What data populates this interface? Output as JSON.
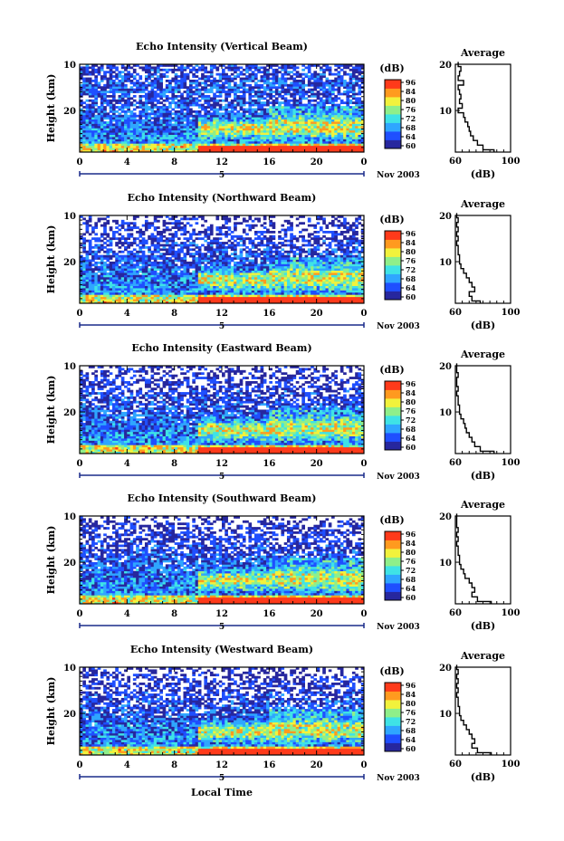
{
  "figure": {
    "xlabel": "Local Time",
    "ylabel": "Height (km)",
    "date_label": "Nov 2003",
    "day_label": "5",
    "colorbar_unit": "(dB)",
    "colorbar_ticks": [
      "96",
      "84",
      "80",
      "76",
      "72",
      "68",
      "64",
      "60"
    ],
    "profile_title": "Average",
    "profile_xlabel": "(dB)",
    "x_tick_labels": [
      "0",
      "4",
      "8",
      "12",
      "16",
      "20",
      "0"
    ],
    "y_tick_labels": [
      "20",
      "10"
    ],
    "colors": {
      "dark_blue": "#27279e",
      "blue": "#1f4fff",
      "light_blue": "#2fa6ff",
      "cyan": "#3fe3e6",
      "green": "#8fef8a",
      "yellow": "#f2f23c",
      "orange": "#ff9a1f",
      "red": "#ff3a1a"
    }
  },
  "chart_data": [
    {
      "type": "heatmap",
      "title": "Echo Intensity (Vertical Beam)",
      "x_range": [
        0,
        24
      ],
      "y_range": [
        1,
        20
      ],
      "z_range": [
        60,
        88
      ],
      "x_ticks": [
        0,
        4,
        8,
        12,
        16,
        20,
        24
      ],
      "y_ticks": [
        10,
        20
      ],
      "profile": {
        "title": "Average",
        "xlim": [
          60,
          100
        ],
        "xticks": [
          60,
          100
        ],
        "xlabel": "(dB)",
        "height": [
          1,
          2,
          3,
          4,
          5,
          6,
          7,
          8,
          9,
          10,
          11,
          12,
          13,
          14,
          15,
          16,
          17,
          18,
          19,
          20
        ],
        "db": [
          88,
          80,
          76,
          73,
          71,
          70,
          69,
          67,
          66,
          62,
          65,
          63,
          64,
          63,
          62,
          66,
          62,
          63,
          64,
          62
        ]
      }
    },
    {
      "type": "heatmap",
      "title": "Echo Intensity (Northward Beam)",
      "x_range": [
        0,
        24
      ],
      "y_range": [
        1,
        20
      ],
      "z_range": [
        60,
        88
      ],
      "x_ticks": [
        0,
        4,
        8,
        12,
        16,
        20,
        24
      ],
      "y_ticks": [
        10,
        20
      ],
      "profile": {
        "title": "Average",
        "xlim": [
          60,
          100
        ],
        "xticks": [
          60,
          100
        ],
        "xlabel": "(dB)",
        "height": [
          1,
          2,
          3,
          4,
          5,
          6,
          7,
          8,
          9,
          10,
          11,
          12,
          13,
          14,
          15,
          16,
          17,
          18,
          19,
          20
        ],
        "db": [
          78,
          72,
          70,
          74,
          72,
          70,
          68,
          66,
          64,
          63,
          63,
          62,
          62,
          61,
          62,
          61,
          62,
          61,
          62,
          61
        ]
      }
    },
    {
      "type": "heatmap",
      "title": "Echo Intensity (Eastward Beam)",
      "x_range": [
        0,
        24
      ],
      "y_range": [
        1,
        20
      ],
      "z_range": [
        60,
        88
      ],
      "x_ticks": [
        0,
        4,
        8,
        12,
        16,
        20,
        24
      ],
      "y_ticks": [
        10,
        20
      ],
      "profile": {
        "title": "Average",
        "xlim": [
          60,
          100
        ],
        "xticks": [
          60,
          100
        ],
        "xlabel": "(dB)",
        "height": [
          1,
          2,
          3,
          4,
          5,
          6,
          7,
          8,
          9,
          10,
          11,
          12,
          13,
          14,
          15,
          16,
          17,
          18,
          19,
          20
        ],
        "db": [
          88,
          78,
          74,
          72,
          70,
          68,
          67,
          66,
          64,
          63,
          63,
          62,
          62,
          61,
          62,
          61,
          61,
          62,
          61,
          61
        ]
      }
    },
    {
      "type": "heatmap",
      "title": "Echo Intensity (Southward Beam)",
      "x_range": [
        0,
        24
      ],
      "y_range": [
        1,
        20
      ],
      "z_range": [
        60,
        88
      ],
      "x_ticks": [
        0,
        4,
        8,
        12,
        16,
        20,
        24
      ],
      "y_ticks": [
        10,
        20
      ],
      "profile": {
        "title": "Average",
        "xlim": [
          60,
          100
        ],
        "xticks": [
          60,
          100
        ],
        "xlabel": "(dB)",
        "height": [
          1,
          2,
          3,
          4,
          5,
          6,
          7,
          8,
          9,
          10,
          11,
          12,
          13,
          14,
          15,
          16,
          17,
          18,
          19,
          20
        ],
        "db": [
          86,
          76,
          72,
          74,
          72,
          70,
          67,
          66,
          64,
          63,
          63,
          62,
          62,
          61,
          62,
          61,
          62,
          61,
          61,
          61
        ]
      }
    },
    {
      "type": "heatmap",
      "title": "Echo Intensity (Westward Beam)",
      "x_range": [
        0,
        24
      ],
      "y_range": [
        1,
        20
      ],
      "z_range": [
        60,
        88
      ],
      "x_ticks": [
        0,
        4,
        8,
        12,
        16,
        20,
        24
      ],
      "y_ticks": [
        10,
        20
      ],
      "profile": {
        "title": "Average",
        "xlim": [
          60,
          100
        ],
        "xticks": [
          60,
          100
        ],
        "xlabel": "(dB)",
        "height": [
          1,
          2,
          3,
          4,
          5,
          6,
          7,
          8,
          9,
          10,
          11,
          12,
          13,
          14,
          15,
          16,
          17,
          18,
          19,
          20
        ],
        "db": [
          86,
          76,
          72,
          74,
          72,
          70,
          68,
          66,
          64,
          63,
          63,
          62,
          62,
          61,
          62,
          61,
          62,
          61,
          62,
          61
        ]
      }
    }
  ]
}
